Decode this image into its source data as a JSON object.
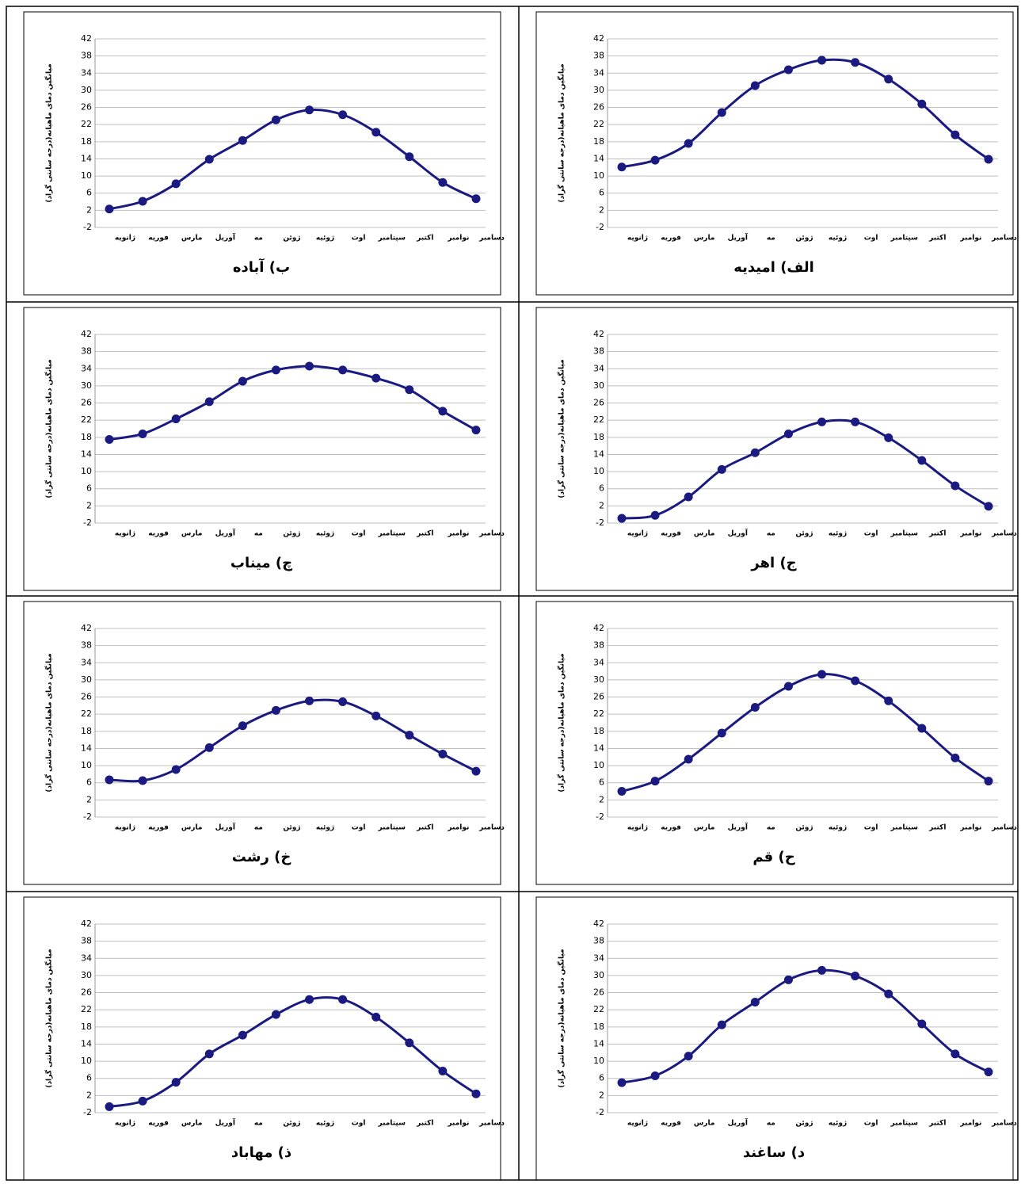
{
  "chart_data": [
    {
      "type": "line",
      "title": "الف) امیدیه",
      "y_label": "میانگین دمای ماهیانه(درجه سانتی گراد)",
      "categories": [
        "ژانویه",
        "فوریه",
        "مارس",
        "آوریل",
        "مه",
        "ژوئن",
        "ژوئیه",
        "اوت",
        "سپتامبر",
        "اکتبر",
        "نوامبر",
        "دسامبر"
      ],
      "values": [
        12.1,
        13.7,
        17.6,
        24.8,
        31.1,
        34.8,
        37.0,
        36.5,
        32.6,
        26.8,
        19.6,
        13.9
      ],
      "color": "#1a1a80",
      "ylim": [
        -2,
        42
      ],
      "yticks": [
        -2,
        2,
        6,
        10,
        14,
        18,
        22,
        26,
        30,
        34,
        38,
        42
      ],
      "grid": true
    },
    {
      "type": "line",
      "title": "ب) آباده",
      "y_label": "میانگین دمای ماهیانه(درجه سانتی گراد)",
      "categories": [
        "ژانویه",
        "فوریه",
        "مارس",
        "آوریل",
        "مه",
        "ژوئن",
        "ژوئیه",
        "اوت",
        "سپتامبر",
        "اکتبر",
        "نوامبر",
        "دسامبر"
      ],
      "values": [
        2.3,
        4.1,
        8.2,
        13.9,
        18.3,
        23.1,
        25.4,
        24.3,
        20.2,
        14.5,
        8.5,
        4.7
      ],
      "color": "#1a1a80",
      "ylim": [
        -2,
        42
      ],
      "yticks": [
        -2,
        2,
        6,
        10,
        14,
        18,
        22,
        26,
        30,
        34,
        38,
        42
      ],
      "grid": true
    },
    {
      "type": "line",
      "title": "ج) اهر",
      "y_label": "میانگین دمای ماهیانه(درجه سانتی گراد)",
      "categories": [
        "ژانویه",
        "فوریه",
        "مارس",
        "آوریل",
        "مه",
        "ژوئن",
        "ژوئیه",
        "اوت",
        "سپتامبر",
        "اکتبر",
        "نوامبر",
        "دسامبر"
      ],
      "values": [
        -0.9,
        -0.2,
        4.1,
        10.5,
        14.4,
        18.8,
        21.6,
        21.6,
        17.9,
        12.6,
        6.7,
        1.9
      ],
      "color": "#1a1a80",
      "ylim": [
        -2,
        42
      ],
      "yticks": [
        -2,
        2,
        6,
        10,
        14,
        18,
        22,
        26,
        30,
        34,
        38,
        42
      ],
      "grid": true
    },
    {
      "type": "line",
      "title": "چ) میناب",
      "y_label": "میانگین دمای ماهیانه(درجه سانتی گراد)",
      "categories": [
        "ژانویه",
        "فوریه",
        "مارس",
        "آوریل",
        "مه",
        "ژوئن",
        "ژوئیه",
        "اوت",
        "سپتامبر",
        "اکتبر",
        "نوامبر",
        "دسامبر"
      ],
      "values": [
        17.5,
        18.8,
        22.3,
        26.3,
        31.1,
        33.7,
        34.6,
        33.7,
        31.8,
        29.1,
        24.1,
        19.7
      ],
      "color": "#1a1a80",
      "ylim": [
        -2,
        42
      ],
      "yticks": [
        -2,
        2,
        6,
        10,
        14,
        18,
        22,
        26,
        30,
        34,
        38,
        42
      ],
      "grid": true
    },
    {
      "type": "line",
      "title": "ح) قم",
      "y_label": "میانگین دمای ماهیانه(درجه سانتی گراد)",
      "categories": [
        "ژانویه",
        "فوریه",
        "مارس",
        "آوریل",
        "مه",
        "ژوئن",
        "ژوئیه",
        "اوت",
        "سپتامبر",
        "اکتبر",
        "نوامبر",
        "دسامبر"
      ],
      "values": [
        4.0,
        6.4,
        11.5,
        17.6,
        23.6,
        28.5,
        31.3,
        29.8,
        25.1,
        18.7,
        11.8,
        6.4
      ],
      "color": "#1a1a80",
      "ylim": [
        -2,
        42
      ],
      "yticks": [
        -2,
        2,
        6,
        10,
        14,
        18,
        22,
        26,
        30,
        34,
        38,
        42
      ],
      "grid": true
    },
    {
      "type": "line",
      "title": "خ) رشت",
      "y_label": "میانگین دمای ماهیانه(درجه سانتی گراد)",
      "categories": [
        "ژانویه",
        "فوریه",
        "مارس",
        "آوریل",
        "مه",
        "ژوئن",
        "ژوئیه",
        "اوت",
        "سپتامبر",
        "اکتبر",
        "نوامبر",
        "دسامبر"
      ],
      "values": [
        6.7,
        6.5,
        9.1,
        14.2,
        19.3,
        22.9,
        25.1,
        24.9,
        21.6,
        17.1,
        12.7,
        8.7
      ],
      "color": "#1a1a80",
      "ylim": [
        -2,
        42
      ],
      "yticks": [
        -2,
        2,
        6,
        10,
        14,
        18,
        22,
        26,
        30,
        34,
        38,
        42
      ],
      "grid": true
    },
    {
      "type": "line",
      "title": "د) ساغند",
      "y_label": "میانگین دمای ماهیانه(درجه سانتی گراد)",
      "categories": [
        "ژانویه",
        "فوریه",
        "مارس",
        "آوریل",
        "مه",
        "ژوئن",
        "ژوئیه",
        "اوت",
        "سپتامبر",
        "اکتبر",
        "نوامبر",
        "دسامبر"
      ],
      "values": [
        5.0,
        6.6,
        11.2,
        18.5,
        23.8,
        29.0,
        31.2,
        29.9,
        25.7,
        18.7,
        11.7,
        7.5
      ],
      "color": "#1a1a80",
      "ylim": [
        -2,
        42
      ],
      "yticks": [
        -2,
        2,
        6,
        10,
        14,
        18,
        22,
        26,
        30,
        34,
        38,
        42
      ],
      "grid": true
    },
    {
      "type": "line",
      "title": "ذ) مهاباد",
      "y_label": "میانگین دمای ماهیانه(درجه سانتی گراد)",
      "categories": [
        "ژانویه",
        "فوریه",
        "مارس",
        "آوریل",
        "مه",
        "ژوئن",
        "ژوئیه",
        "اوت",
        "سپتامبر",
        "اکتبر",
        "نوامبر",
        "دسامبر"
      ],
      "values": [
        -0.6,
        0.7,
        5.1,
        11.7,
        16.1,
        20.9,
        24.4,
        24.4,
        20.3,
        14.3,
        7.7,
        2.4
      ],
      "color": "#1a1a80",
      "ylim": [
        -2,
        42
      ],
      "yticks": [
        -2,
        2,
        6,
        10,
        14,
        18,
        22,
        26,
        30,
        34,
        38,
        42
      ],
      "grid": true
    }
  ]
}
